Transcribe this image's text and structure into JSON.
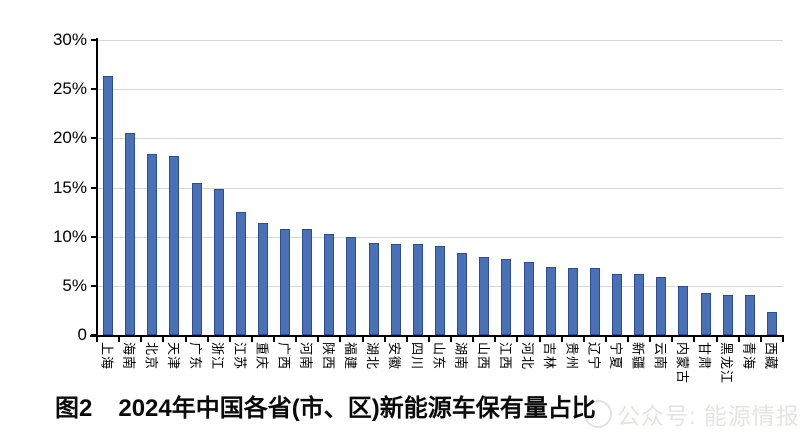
{
  "chart_data": {
    "type": "bar",
    "title": "2024年中国各省(市、区)新能源车保有量占比",
    "categories": [
      "上海",
      "海南",
      "北京",
      "天津",
      "广东",
      "浙江",
      "江苏",
      "重庆",
      "广西",
      "河南",
      "陕西",
      "福建",
      "湖北",
      "安徽",
      "四川",
      "山东",
      "湖南",
      "山西",
      "江西",
      "河北",
      "吉林",
      "贵州",
      "辽宁",
      "宁夏",
      "新疆",
      "云南",
      "内蒙古",
      "甘肃",
      "黑龙江",
      "青海",
      "西藏"
    ],
    "values": [
      26.3,
      20.5,
      18.4,
      18.2,
      15.5,
      14.8,
      12.5,
      11.4,
      10.8,
      10.8,
      10.3,
      10.0,
      9.4,
      9.3,
      9.3,
      9.1,
      8.3,
      7.9,
      7.7,
      7.4,
      6.9,
      6.8,
      6.8,
      6.2,
      6.2,
      5.9,
      5.0,
      4.3,
      4.1,
      4.1,
      2.3
    ],
    "xlabel": "",
    "ylabel": "",
    "ylim": [
      0,
      30
    ],
    "ytick_step": 5,
    "ytick_labels": [
      "0",
      "5%",
      "10%",
      "15%",
      "20%",
      "25%",
      "30%"
    ],
    "grid": true,
    "legend_position": "none",
    "x_label_rotation": 90
  },
  "caption": {
    "prefix": "图2",
    "title": "2024年中国各省(市、区)新能源车保有量占比"
  },
  "watermark": {
    "logo": "circle-logo",
    "text": "公众号: 能源情报"
  },
  "colors": {
    "bar": "#4a70b5",
    "bar_edge": "#2e4d8e",
    "grid": "#d6d6d6",
    "axis": "#000000",
    "text": "#000000",
    "watermark": "#e4e4e1"
  }
}
